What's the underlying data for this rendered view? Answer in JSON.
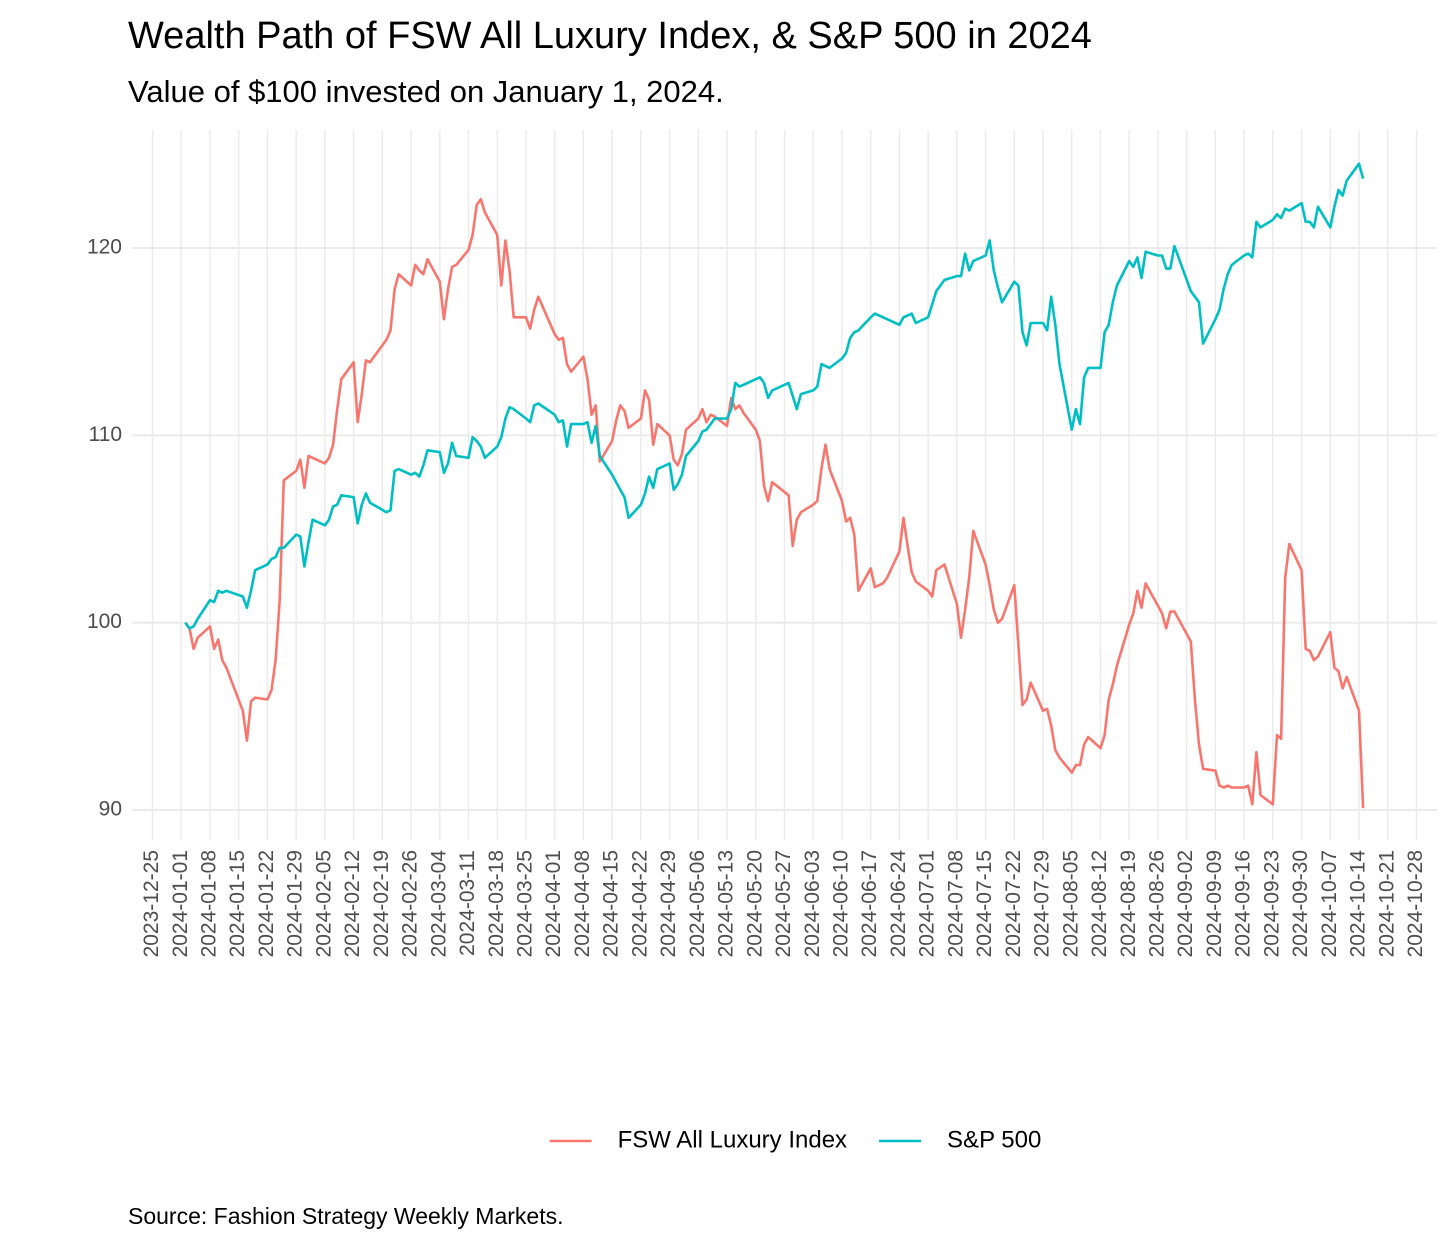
{
  "chart_data": {
    "type": "line",
    "title": "Wealth Path of FSW All Luxury Index, & S&P 500 in 2024",
    "subtitle": "Value of $100 invested on January 1, 2024.",
    "caption": "Source: Fashion Strategy Weekly Markets.",
    "legend": "bottom",
    "grid": true,
    "xlim": [
      "2023-12-20",
      "2024-11-02"
    ],
    "xticks": [
      "2023-12-25",
      "2024-01-01",
      "2024-01-08",
      "2024-01-15",
      "2024-01-22",
      "2024-01-29",
      "2024-02-05",
      "2024-02-12",
      "2024-02-19",
      "2024-02-26",
      "2024-03-04",
      "2024-03-11",
      "2024-03-18",
      "2024-03-25",
      "2024-04-01",
      "2024-04-08",
      "2024-04-15",
      "2024-04-22",
      "2024-04-29",
      "2024-05-06",
      "2024-05-13",
      "2024-05-20",
      "2024-05-27",
      "2024-06-03",
      "2024-06-10",
      "2024-06-17",
      "2024-06-24",
      "2024-07-01",
      "2024-07-08",
      "2024-07-15",
      "2024-07-22",
      "2024-07-29",
      "2024-08-05",
      "2024-08-12",
      "2024-08-19",
      "2024-08-26",
      "2024-09-02",
      "2024-09-09",
      "2024-09-16",
      "2024-09-23",
      "2024-09-30",
      "2024-10-07",
      "2024-10-14",
      "2024-10-21",
      "2024-10-28"
    ],
    "ylim": [
      88.4,
      126.3
    ],
    "yticks": [
      90,
      100,
      110,
      120
    ],
    "x": [
      "2024-01-02",
      "2024-01-03",
      "2024-01-04",
      "2024-01-05",
      "2024-01-08",
      "2024-01-09",
      "2024-01-10",
      "2024-01-11",
      "2024-01-12",
      "2024-01-16",
      "2024-01-17",
      "2024-01-18",
      "2024-01-19",
      "2024-01-22",
      "2024-01-23",
      "2024-01-24",
      "2024-01-25",
      "2024-01-26",
      "2024-01-29",
      "2024-01-30",
      "2024-01-31",
      "2024-02-01",
      "2024-02-02",
      "2024-02-05",
      "2024-02-06",
      "2024-02-07",
      "2024-02-08",
      "2024-02-09",
      "2024-02-12",
      "2024-02-13",
      "2024-02-14",
      "2024-02-15",
      "2024-02-16",
      "2024-02-20",
      "2024-02-21",
      "2024-02-22",
      "2024-02-23",
      "2024-02-26",
      "2024-02-27",
      "2024-02-28",
      "2024-02-29",
      "2024-03-01",
      "2024-03-04",
      "2024-03-05",
      "2024-03-06",
      "2024-03-07",
      "2024-03-08",
      "2024-03-11",
      "2024-03-12",
      "2024-03-13",
      "2024-03-14",
      "2024-03-15",
      "2024-03-18",
      "2024-03-19",
      "2024-03-20",
      "2024-03-21",
      "2024-03-22",
      "2024-03-25",
      "2024-03-26",
      "2024-03-27",
      "2024-03-28",
      "2024-04-01",
      "2024-04-02",
      "2024-04-03",
      "2024-04-04",
      "2024-04-05",
      "2024-04-08",
      "2024-04-09",
      "2024-04-10",
      "2024-04-11",
      "2024-04-12",
      "2024-04-15",
      "2024-04-16",
      "2024-04-17",
      "2024-04-18",
      "2024-04-19",
      "2024-04-22",
      "2024-04-23",
      "2024-04-24",
      "2024-04-25",
      "2024-04-26",
      "2024-04-29",
      "2024-04-30",
      "2024-05-01",
      "2024-05-02",
      "2024-05-03",
      "2024-05-06",
      "2024-05-07",
      "2024-05-08",
      "2024-05-09",
      "2024-05-10",
      "2024-05-13",
      "2024-05-14",
      "2024-05-15",
      "2024-05-16",
      "2024-05-17",
      "2024-05-20",
      "2024-05-21",
      "2024-05-22",
      "2024-05-23",
      "2024-05-24",
      "2024-05-28",
      "2024-05-29",
      "2024-05-30",
      "2024-05-31",
      "2024-06-03",
      "2024-06-04",
      "2024-06-05",
      "2024-06-06",
      "2024-06-07",
      "2024-06-10",
      "2024-06-11",
      "2024-06-12",
      "2024-06-13",
      "2024-06-14",
      "2024-06-17",
      "2024-06-18",
      "2024-06-20",
      "2024-06-21",
      "2024-06-24",
      "2024-06-25",
      "2024-06-26",
      "2024-06-27",
      "2024-06-28",
      "2024-07-01",
      "2024-07-02",
      "2024-07-03",
      "2024-07-05",
      "2024-07-08",
      "2024-07-09",
      "2024-07-10",
      "2024-07-11",
      "2024-07-12",
      "2024-07-15",
      "2024-07-16",
      "2024-07-17",
      "2024-07-18",
      "2024-07-19",
      "2024-07-22",
      "2024-07-23",
      "2024-07-24",
      "2024-07-25",
      "2024-07-26",
      "2024-07-29",
      "2024-07-30",
      "2024-07-31",
      "2024-08-01",
      "2024-08-02",
      "2024-08-05",
      "2024-08-06",
      "2024-08-07",
      "2024-08-08",
      "2024-08-09",
      "2024-08-12",
      "2024-08-13",
      "2024-08-14",
      "2024-08-15",
      "2024-08-16",
      "2024-08-19",
      "2024-08-20",
      "2024-08-21",
      "2024-08-22",
      "2024-08-23",
      "2024-08-26",
      "2024-08-27",
      "2024-08-28",
      "2024-08-29",
      "2024-08-30",
      "2024-09-03",
      "2024-09-04",
      "2024-09-05",
      "2024-09-06",
      "2024-09-09",
      "2024-09-10",
      "2024-09-11",
      "2024-09-12",
      "2024-09-13",
      "2024-09-16",
      "2024-09-17",
      "2024-09-18",
      "2024-09-19",
      "2024-09-20",
      "2024-09-23",
      "2024-09-24",
      "2024-09-25",
      "2024-09-26",
      "2024-09-27",
      "2024-09-30",
      "2024-10-01",
      "2024-10-02",
      "2024-10-03",
      "2024-10-04",
      "2024-10-07",
      "2024-10-08",
      "2024-10-09",
      "2024-10-10",
      "2024-10-11",
      "2024-10-14",
      "2024-10-15"
    ],
    "series": [
      {
        "name": "FSW All Luxury Index",
        "color": "#F8766D",
        "values": [
          100.0,
          99.7,
          98.6,
          99.2,
          99.8,
          98.6,
          99.1,
          98.0,
          97.6,
          95.3,
          93.7,
          95.8,
          96.0,
          95.9,
          96.4,
          98.0,
          101.2,
          107.6,
          108.1,
          108.7,
          107.2,
          108.9,
          108.8,
          108.5,
          108.8,
          109.5,
          111.4,
          113.0,
          113.9,
          110.7,
          112.2,
          114.0,
          113.9,
          115.1,
          115.6,
          117.8,
          118.6,
          118.0,
          119.1,
          118.8,
          118.6,
          119.4,
          118.2,
          116.2,
          117.8,
          119.0,
          119.1,
          119.9,
          120.7,
          122.3,
          122.6,
          121.9,
          120.7,
          118.0,
          120.4,
          118.8,
          116.3,
          116.3,
          115.7,
          116.7,
          117.4,
          115.4,
          115.1,
          115.2,
          113.8,
          113.4,
          114.2,
          113.0,
          111.1,
          111.6,
          108.6,
          109.7,
          110.8,
          111.6,
          111.3,
          110.4,
          110.9,
          112.4,
          111.9,
          109.5,
          110.6,
          110.0,
          108.7,
          108.4,
          109.0,
          110.3,
          110.9,
          111.4,
          110.7,
          111.1,
          111.0,
          110.5,
          112.0,
          111.4,
          111.6,
          111.2,
          110.3,
          109.7,
          107.3,
          106.5,
          107.5,
          106.8,
          104.1,
          105.5,
          105.9,
          106.3,
          106.5,
          108.2,
          109.5,
          108.2,
          106.5,
          105.4,
          105.6,
          104.7,
          101.7,
          102.9,
          101.9,
          102.1,
          102.4,
          103.8,
          105.6,
          104.1,
          102.7,
          102.2,
          101.7,
          101.4,
          102.8,
          103.1,
          101.0,
          99.2,
          100.7,
          102.4,
          104.9,
          103.1,
          102.0,
          100.7,
          100.0,
          100.2,
          102.0,
          98.8,
          95.6,
          95.9,
          96.8,
          95.3,
          95.4,
          94.5,
          93.2,
          92.8,
          92.0,
          92.4,
          92.4,
          93.5,
          93.9,
          93.3,
          94.0,
          95.9,
          96.7,
          97.7,
          99.9,
          100.5,
          101.7,
          100.8,
          102.1,
          100.9,
          100.5,
          99.7,
          100.6,
          100.6,
          99.0,
          95.9,
          93.5,
          92.2,
          92.1,
          91.3,
          91.2,
          91.3,
          91.2,
          91.2,
          91.3,
          90.3,
          93.1,
          90.8,
          90.3,
          94.0,
          93.8,
          102.4,
          104.2,
          102.8,
          98.6,
          98.5,
          98.0,
          98.2,
          99.5,
          97.6,
          97.4,
          96.5,
          97.1,
          95.3,
          90.1
        ]
      },
      {
        "name": "S&P 500",
        "color": "#00BFC4",
        "values": [
          100.0,
          99.7,
          99.8,
          100.2,
          101.2,
          101.1,
          101.7,
          101.6,
          101.7,
          101.4,
          100.8,
          101.7,
          102.8,
          103.1,
          103.4,
          103.5,
          104.0,
          104.0,
          104.7,
          104.6,
          103.0,
          104.3,
          105.5,
          105.2,
          105.5,
          106.2,
          106.3,
          106.8,
          106.7,
          105.3,
          106.3,
          106.9,
          106.4,
          105.9,
          106.0,
          108.1,
          108.2,
          107.9,
          108.0,
          107.8,
          108.4,
          109.2,
          109.1,
          108.0,
          108.5,
          109.6,
          108.9,
          108.8,
          109.9,
          109.7,
          109.4,
          108.8,
          109.4,
          109.9,
          110.9,
          111.5,
          111.4,
          110.9,
          110.7,
          111.6,
          111.7,
          111.1,
          110.7,
          110.8,
          109.4,
          110.6,
          110.6,
          110.7,
          109.6,
          110.5,
          108.9,
          107.9,
          107.5,
          107.1,
          106.7,
          105.6,
          106.3,
          106.9,
          107.8,
          107.2,
          108.2,
          108.5,
          107.1,
          107.4,
          107.9,
          108.9,
          109.7,
          110.2,
          110.3,
          110.6,
          110.9,
          110.9,
          111.4,
          112.8,
          112.6,
          112.7,
          113.0,
          113.1,
          112.8,
          112.0,
          112.4,
          112.8,
          112.1,
          111.4,
          112.2,
          112.4,
          112.6,
          113.8,
          113.7,
          113.6,
          114.1,
          114.4,
          115.2,
          115.5,
          115.6,
          116.3,
          116.5,
          116.3,
          116.2,
          115.9,
          116.3,
          116.4,
          116.5,
          116.0,
          116.3,
          117.0,
          117.7,
          118.3,
          118.5,
          118.5,
          119.7,
          118.8,
          119.3,
          119.6,
          120.4,
          118.8,
          117.9,
          117.1,
          118.2,
          118.0,
          115.5,
          114.8,
          116.0,
          116.0,
          115.6,
          117.4,
          115.9,
          113.8,
          110.3,
          111.4,
          110.6,
          113.1,
          113.6,
          113.6,
          115.5,
          115.9,
          117.1,
          118.0,
          119.3,
          119.0,
          119.5,
          118.4,
          119.8,
          119.6,
          119.6,
          118.9,
          118.9,
          120.1,
          117.7,
          117.4,
          117.1,
          114.9,
          116.2,
          116.7,
          117.8,
          118.6,
          119.1,
          119.6,
          119.7,
          119.5,
          121.4,
          121.1,
          121.5,
          121.8,
          121.6,
          122.1,
          122.0,
          122.4,
          121.4,
          121.4,
          121.1,
          122.2,
          121.1,
          122.2,
          123.1,
          122.8,
          123.6,
          124.5,
          123.7
        ]
      }
    ]
  }
}
